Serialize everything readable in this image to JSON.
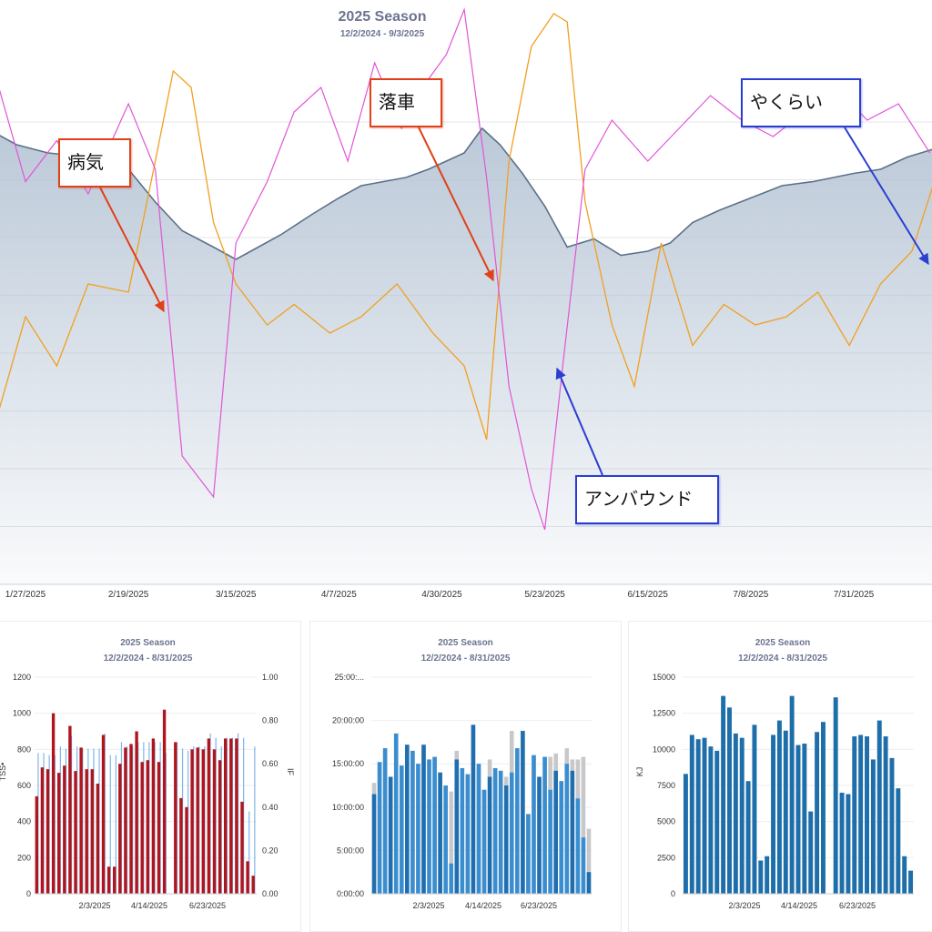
{
  "main": {
    "title": "2025 Season",
    "subtitle": "12/2/2024 - 9/3/2025",
    "annotations": {
      "sick": "病気",
      "crash": "落車",
      "unbound": "アンバウンド",
      "yakurai": "やくらい"
    },
    "colors": {
      "fitness_fill": "#b8c6d6",
      "fitness_line": "#5b7088",
      "fatigue": "#e055d8",
      "form": "#f0a020",
      "annot_red": "#e0401a",
      "annot_blue": "#2a3fd0"
    }
  },
  "chart_data": [
    {
      "type": "area",
      "title": "2025 Season",
      "subtitle": "12/2/2024 - 9/3/2025",
      "x_tick_labels": [
        "1/27/2025",
        "2/19/2025",
        "3/15/2025",
        "4/7/2025",
        "4/30/2025",
        "5/23/2025",
        "6/15/2025",
        "7/8/2025",
        "7/31/2025"
      ],
      "series": [
        {
          "x": [
            "1/20/2025",
            "1/25/2025",
            "2/1/2025",
            "2/10/2025",
            "2/15/2025",
            "2/19/2025",
            "2/25/2025",
            "3/3/2025",
            "3/10/2025",
            "3/15/2025",
            "3/20/2025",
            "3/25/2025",
            "4/1/2025",
            "4/7/2025",
            "4/12/2025",
            "4/17/2025",
            "4/22/2025",
            "4/27/2025",
            "5/1/2025",
            "5/5/2025",
            "5/9/2025",
            "5/13/2025",
            "5/18/2025",
            "5/23/2025",
            "5/28/2025",
            "6/3/2025",
            "6/9/2025",
            "6/15/2025",
            "6/20/2025",
            "6/25/2025",
            "7/1/2025",
            "7/8/2025",
            "7/15/2025",
            "7/22/2025",
            "7/31/2025",
            "8/6/2025",
            "8/12/2025",
            "8/18/2025"
          ],
          "values": [
            67,
            64,
            62,
            61,
            59,
            58,
            50,
            43,
            39,
            36,
            39,
            42,
            47,
            51,
            54,
            55,
            56,
            58,
            60,
            62,
            68,
            64,
            57,
            49,
            39,
            41,
            37,
            38,
            40,
            45,
            48,
            51,
            54,
            55,
            57,
            58,
            61,
            63
          ]
        },
        {
          "x": [
            "1/20/2025",
            "1/27/2025",
            "2/3/2025",
            "2/10/2025",
            "2/19/2025",
            "2/25/2025",
            "3/3/2025",
            "3/10/2025",
            "3/15/2025",
            "3/22/2025",
            "3/28/2025",
            "4/3/2025",
            "4/9/2025",
            "4/15/2025",
            "4/21/2025",
            "4/27/2025",
            "5/1/2025",
            "5/5/2025",
            "5/10/2025",
            "5/15/2025",
            "5/20/2025",
            "5/23/2025",
            "5/27/2025",
            "6/1/2025",
            "6/7/2025",
            "6/15/2025",
            "6/22/2025",
            "6/29/2025",
            "7/6/2025",
            "7/13/2025",
            "7/20/2025",
            "7/27/2025",
            "8/3/2025",
            "8/10/2025",
            "8/17/2025"
          ],
          "values": [
            82,
            55,
            65,
            52,
            74,
            58,
            -12,
            -22,
            40,
            55,
            72,
            78,
            60,
            84,
            68,
            80,
            86,
            97,
            56,
            5,
            -20,
            -30,
            10,
            58,
            70,
            60,
            68,
            76,
            70,
            66,
            72,
            78,
            70,
            74,
            62
          ]
        },
        {
          "x": [
            "1/20/2025",
            "1/27/2025",
            "2/3/2025",
            "2/10/2025",
            "2/19/2025",
            "2/25/2025",
            "3/1/2025",
            "3/5/2025",
            "3/10/2025",
            "3/15/2025",
            "3/22/2025",
            "3/28/2025",
            "4/5/2025",
            "4/12/2025",
            "4/20/2025",
            "4/28/2025",
            "5/5/2025",
            "5/10/2025",
            "5/15/2025",
            "5/20/2025",
            "5/25/2025",
            "5/28/2025",
            "6/1/2025",
            "6/7/2025",
            "6/12/2025",
            "6/18/2025",
            "6/25/2025",
            "7/2/2025",
            "7/9/2025",
            "7/16/2025",
            "7/23/2025",
            "7/30/2025",
            "8/6/2025",
            "8/13/2025",
            "8/18/2025"
          ],
          "values": [
            -5,
            22,
            10,
            30,
            28,
            60,
            82,
            78,
            45,
            30,
            20,
            25,
            18,
            22,
            30,
            18,
            10,
            -8,
            60,
            88,
            96,
            94,
            50,
            20,
            5,
            40,
            15,
            25,
            20,
            22,
            28,
            15,
            30,
            38,
            55
          ]
        }
      ]
    },
    {
      "type": "bar",
      "title": "2025 Season",
      "subtitle": "12/2/2024 - 8/31/2025",
      "ylabel": "TSS•",
      "y2label": "IF",
      "ylim": [
        0,
        1200
      ],
      "y2lim": [
        0,
        1.0
      ],
      "y_ticks": [
        "0",
        "200",
        "400",
        "600",
        "800",
        "1000",
        "1200"
      ],
      "y2_ticks": [
        "0.00",
        "0.20",
        "0.40",
        "0.60",
        "0.80",
        "1.00"
      ],
      "x_tick_labels": [
        "2/3/2025",
        "4/14/2025",
        "6/23/2025"
      ],
      "series": [
        {
          "values": [
            540,
            700,
            690,
            1000,
            670,
            710,
            930,
            680,
            810,
            690,
            690,
            610,
            880,
            150,
            150,
            720,
            810,
            830,
            900,
            730,
            740,
            860,
            730,
            1020,
            null,
            840,
            530,
            480,
            800,
            810,
            800,
            860,
            800,
            740,
            860,
            860,
            860,
            510,
            180,
            100
          ]
        },
        {
          "values": [
            0.65,
            0.65,
            0.64,
            0.64,
            0.68,
            0.67,
            0.73,
            0.68,
            0.67,
            0.67,
            0.67,
            0.67,
            0.74,
            0.64,
            0.64,
            0.7,
            0.68,
            0.68,
            0.7,
            0.7,
            0.7,
            0.7,
            0.7,
            0.65,
            null,
            0.7,
            0.67,
            0.66,
            0.68,
            0.68,
            0.68,
            0.74,
            0.72,
            0.68,
            0.72,
            0.72,
            0.74,
            0.72,
            0.38,
            0.68
          ]
        }
      ]
    },
    {
      "type": "bar",
      "title": "2025 Season",
      "subtitle": "12/2/2024 - 8/31/2025",
      "y_ticks": [
        "0:00:00",
        "5:00:00",
        "10:00:00",
        "15:00:00",
        "20:00:00",
        "25:00:..."
      ],
      "ylim_hours": [
        0,
        25
      ],
      "x_tick_labels": [
        "2/3/2025",
        "4/14/2025",
        "6/23/2025"
      ],
      "series": [
        {
          "values": [
            11.5,
            15.2,
            16.8,
            13.5,
            18.5,
            14.8,
            17.2,
            16.5,
            15.0,
            17.2,
            15.5,
            15.8,
            14.0,
            12.5,
            3.5,
            15.5,
            14.5,
            13.8,
            19.5,
            15.0,
            12.0,
            13.5,
            14.5,
            14.2,
            12.5,
            14.0,
            16.8,
            18.8,
            9.2,
            16.0,
            13.5,
            15.8,
            12.0,
            14.2,
            13.0,
            15.0,
            14.2,
            11.0,
            6.5,
            2.5
          ]
        },
        {
          "values": [
            12.8,
            15.2,
            16.8,
            13.5,
            18.5,
            14.8,
            17.2,
            16.5,
            15.0,
            17.2,
            15.5,
            15.8,
            14.0,
            12.5,
            11.8,
            16.5,
            14.5,
            13.8,
            19.5,
            15.0,
            12.0,
            15.5,
            14.5,
            14.2,
            13.5,
            18.8,
            16.8,
            18.8,
            9.2,
            16.0,
            13.5,
            15.8,
            15.8,
            16.2,
            13.0,
            16.8,
            15.5,
            15.5,
            15.8,
            7.5
          ]
        }
      ]
    },
    {
      "type": "bar",
      "title": "2025 Season",
      "subtitle": "12/2/2024 - 8/31/2025",
      "ylabel": "KJ",
      "ylim": [
        0,
        15000
      ],
      "y_ticks": [
        "0",
        "2500",
        "5000",
        "7500",
        "10000",
        "12500",
        "15000"
      ],
      "x_tick_labels": [
        "2/3/2025",
        "4/14/2025",
        "6/23/2025"
      ],
      "series": [
        {
          "values": [
            8300,
            11000,
            10700,
            10800,
            10200,
            9900,
            13700,
            12900,
            11100,
            10800,
            7800,
            11700,
            2300,
            2600,
            11000,
            12000,
            11300,
            13700,
            10300,
            10400,
            5700,
            11200,
            11900,
            null,
            13600,
            7000,
            6900,
            10900,
            11000,
            10900,
            9300,
            12000,
            10900,
            9400,
            7300,
            2600,
            1600
          ]
        }
      ]
    }
  ]
}
